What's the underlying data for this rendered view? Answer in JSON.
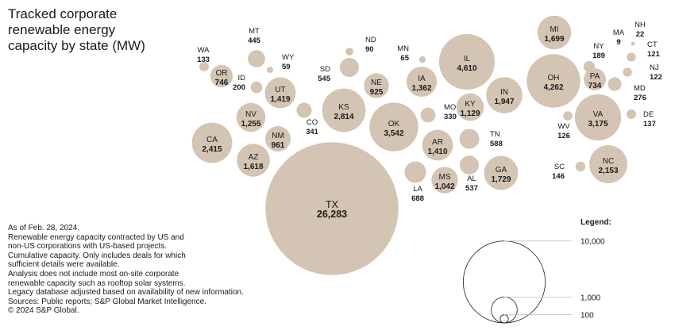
{
  "title": "Tracked corporate renewable energy capacity by state (MW)",
  "notes": [
    "As of Feb. 28, 2024.",
    "Renewable energy capacity contracted by US and",
    "non-US corporations with US-based projects.",
    "Cumulative capacity. Only includes deals for which",
    "sufficient details were available.",
    "Analysis does not include most on-site corporate",
    "renewable capacity such as rooftop solar systems.",
    "Legacy database adjusted based on availability of new information.",
    "Sources: Public reports; S&P Global Market Intelligence.",
    "© 2024 S&P Global."
  ],
  "colors": {
    "bubble": "#d3c4b4",
    "text": "#1a1a1a",
    "legend_stroke": "#1a1a1a",
    "leader": "#bdbdbd"
  },
  "chart_data": {
    "type": "bubble",
    "title": "Tracked corporate renewable energy capacity by state (MW)",
    "unit": "MW",
    "points": [
      {
        "state": "WA",
        "value": 133
      },
      {
        "state": "OR",
        "value": 746
      },
      {
        "state": "MT",
        "value": 445
      },
      {
        "state": "WY",
        "value": 59
      },
      {
        "state": "ID",
        "value": 200
      },
      {
        "state": "UT",
        "value": 1419
      },
      {
        "state": "NV",
        "value": 1255
      },
      {
        "state": "CA",
        "value": 2415
      },
      {
        "state": "AZ",
        "value": 1618
      },
      {
        "state": "NM",
        "value": 961
      },
      {
        "state": "CO",
        "value": 341
      },
      {
        "state": "SD",
        "value": 545
      },
      {
        "state": "ND",
        "value": 90
      },
      {
        "state": "NE",
        "value": 925
      },
      {
        "state": "KS",
        "value": 2814
      },
      {
        "state": "OK",
        "value": 3542
      },
      {
        "state": "TX",
        "value": 26283
      },
      {
        "state": "MN",
        "value": 65
      },
      {
        "state": "IA",
        "value": 1362
      },
      {
        "state": "IL",
        "value": 4610
      },
      {
        "state": "MO",
        "value": 330
      },
      {
        "state": "AR",
        "value": 1410
      },
      {
        "state": "LA",
        "value": 688
      },
      {
        "state": "KY",
        "value": 1129
      },
      {
        "state": "TN",
        "value": 588
      },
      {
        "state": "MS",
        "value": 1042
      },
      {
        "state": "AL",
        "value": 537
      },
      {
        "state": "GA",
        "value": 1729
      },
      {
        "state": "IN",
        "value": 1947
      },
      {
        "state": "MI",
        "value": 1699
      },
      {
        "state": "OH",
        "value": 4262
      },
      {
        "state": "NY",
        "value": 189
      },
      {
        "state": "PA",
        "value": 734
      },
      {
        "state": "MA",
        "value": 9
      },
      {
        "state": "NH",
        "value": 22
      },
      {
        "state": "CT",
        "value": 121
      },
      {
        "state": "NJ",
        "value": 122
      },
      {
        "state": "MD",
        "value": 276
      },
      {
        "state": "DE",
        "value": 137
      },
      {
        "state": "VA",
        "value": 3175
      },
      {
        "state": "WV",
        "value": 126
      },
      {
        "state": "NC",
        "value": 2153
      },
      {
        "state": "SC",
        "value": 146
      }
    ],
    "legend": {
      "title": "Legend:",
      "entries": [
        {
          "value": 10000,
          "label": "10,000"
        },
        {
          "value": 1000,
          "label": "1,000"
        },
        {
          "value": 100,
          "label": "100"
        }
      ]
    }
  }
}
